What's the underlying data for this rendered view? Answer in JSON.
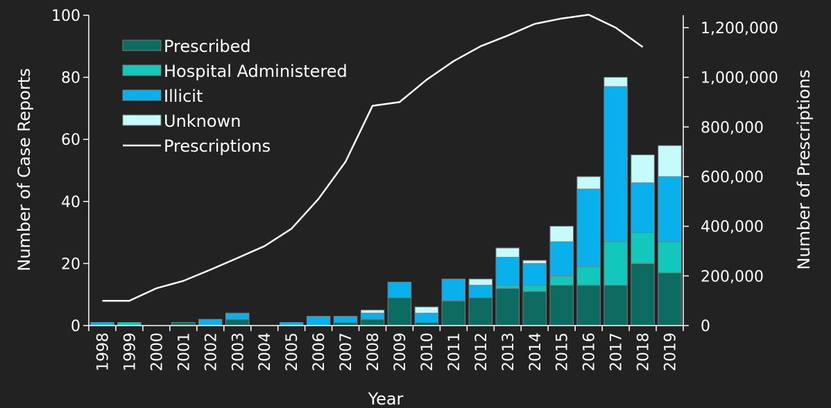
{
  "chart_data": {
    "type": "bar",
    "stacked": true,
    "xlabel": "Year",
    "ylabel": "Number of Case Reports",
    "y2label": "Number of Prescriptions",
    "ylim": [
      0,
      100
    ],
    "y2lim": [
      0,
      1250000
    ],
    "yticks": [
      "0",
      "20",
      "40",
      "60",
      "80",
      "100"
    ],
    "y2ticks": [
      "0",
      "200,000",
      "400,000",
      "600,000",
      "800,000",
      "1,000,000",
      "1,200,000"
    ],
    "legend_position": "top-left",
    "categories": [
      "1998",
      "1999",
      "2000",
      "2001",
      "2002",
      "2003",
      "2004",
      "2005",
      "2006",
      "2007",
      "2008",
      "2009",
      "2010",
      "2011",
      "2012",
      "2013",
      "2014",
      "2015",
      "2016",
      "2017",
      "2018",
      "2019"
    ],
    "series": [
      {
        "name": "Prescribed",
        "color": "#0e6b62",
        "values": [
          0,
          0,
          0,
          1,
          0,
          2,
          0,
          0,
          0,
          1,
          2,
          9,
          1,
          8,
          9,
          12,
          11,
          13,
          13,
          13,
          20,
          17
        ]
      },
      {
        "name": "Hospital Administered",
        "color": "#12c8bd",
        "values": [
          0,
          1,
          0,
          0,
          0,
          0,
          0,
          0,
          0,
          0,
          0,
          0,
          0,
          0,
          0,
          1,
          2,
          3,
          6,
          14,
          10,
          10
        ]
      },
      {
        "name": "Illicit",
        "color": "#0ab0ec",
        "values": [
          1,
          0,
          0,
          0,
          2,
          2,
          0,
          1,
          3,
          2,
          2,
          5,
          3,
          7,
          4,
          9,
          7,
          11,
          25,
          50,
          16,
          21
        ]
      },
      {
        "name": "Unknown",
        "color": "#c6fbfb",
        "values": [
          0,
          0,
          0,
          0,
          0,
          0,
          0,
          0,
          0,
          0,
          1,
          0,
          2,
          0,
          2,
          3,
          1,
          5,
          4,
          3,
          9,
          10
        ]
      }
    ],
    "line_series": {
      "name": "Prescriptions",
      "color": "#ffffff",
      "values": [
        100000,
        100000,
        150000,
        180000,
        225000,
        272000,
        320000,
        390000,
        510000,
        660000,
        885000,
        900000,
        990000,
        1065000,
        1125000,
        1168000,
        1215000,
        1237000,
        1252000,
        1200000,
        1122000,
        null
      ]
    }
  }
}
